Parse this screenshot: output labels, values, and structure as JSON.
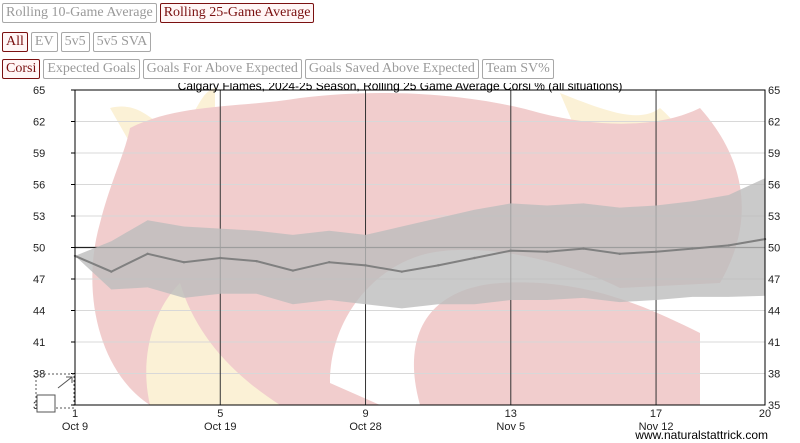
{
  "controls": {
    "window": [
      {
        "label": "Rolling 10-Game Average",
        "active": false
      },
      {
        "label": "Rolling 25-Game Average",
        "active": true
      }
    ],
    "strength": [
      {
        "label": "All",
        "active": true
      },
      {
        "label": "EV",
        "active": false
      },
      {
        "label": "5v5",
        "active": false
      },
      {
        "label": "5v5 SVA",
        "active": false
      }
    ],
    "metric": [
      {
        "label": "Corsi",
        "active": true
      },
      {
        "label": "Expected Goals",
        "active": false
      },
      {
        "label": "Goals For Above Expected",
        "active": false
      },
      {
        "label": "Goals Saved Above Expected",
        "active": false
      },
      {
        "label": "Team SV%",
        "active": false
      }
    ]
  },
  "chart_data": {
    "type": "line",
    "title": "Calgary Flames, 2024-25 Season, Rolling 25 Game Average Corsi % (all situations)",
    "xlim": [
      1,
      20
    ],
    "ylim": [
      35,
      65
    ],
    "y_ticks": [
      35,
      38,
      41,
      44,
      47,
      50,
      53,
      56,
      59,
      62,
      65
    ],
    "x_ticks": [
      {
        "game": 1,
        "date": "Oct 9"
      },
      {
        "game": 5,
        "date": "Oct 19"
      },
      {
        "game": 9,
        "date": "Oct 28"
      },
      {
        "game": 13,
        "date": "Nov 5"
      },
      {
        "game": 17,
        "date": "Nov 12"
      },
      {
        "game": 20,
        "date": ""
      }
    ],
    "reference_line": 50,
    "x": [
      1,
      2,
      3,
      4,
      5,
      6,
      7,
      8,
      9,
      10,
      11,
      12,
      13,
      14,
      15,
      16,
      17,
      18,
      19,
      20
    ],
    "series": [
      {
        "values": [
          49.2,
          47.7,
          49.4,
          48.6,
          49.0,
          48.7,
          47.8,
          48.6,
          48.3,
          47.7,
          48.3,
          49.0,
          49.7,
          49.6,
          49.9,
          49.4,
          49.6,
          49.9,
          50.2,
          50.8
        ]
      }
    ],
    "band_upper": [
      49.2,
      50.6,
      52.6,
      52.0,
      51.8,
      51.6,
      51.2,
      51.6,
      51.2,
      52.0,
      52.8,
      53.6,
      54.2,
      54.0,
      54.2,
      53.8,
      54.0,
      54.4,
      55.0,
      56.6
    ],
    "band_lower": [
      49.2,
      46.0,
      46.2,
      45.2,
      45.6,
      45.6,
      44.6,
      45.0,
      44.6,
      44.2,
      44.6,
      44.6,
      45.0,
      45.0,
      45.2,
      44.8,
      45.0,
      45.3,
      45.3,
      45.4
    ],
    "colors": {
      "line": "#808080",
      "band": "#bdbdbd",
      "grid": "#333333",
      "watermark_red": "#f0c8c8",
      "watermark_yellow": "#fbf0d2"
    },
    "credit": "www.naturalstattrick.com"
  }
}
